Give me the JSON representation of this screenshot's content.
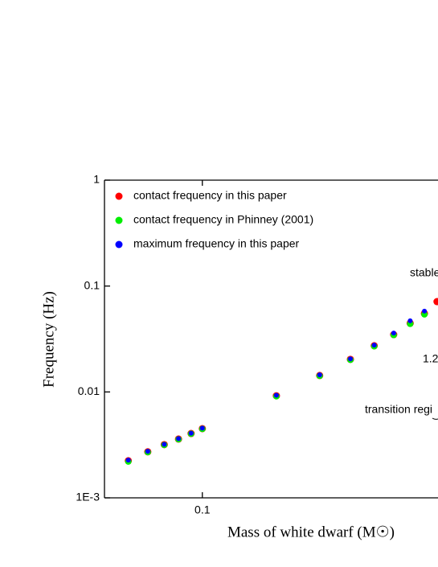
{
  "chart_data": {
    "type": "scatter",
    "xlabel": "Mass of white dwarf (M☉)",
    "ylabel": "Frequency (Hz)",
    "xlog": true,
    "ylog": true,
    "xlim": [
      0.04,
      1.2
    ],
    "ylim": [
      0.001,
      1
    ],
    "xticks": [
      0.1
    ],
    "yticks": [
      {
        "value": 0.001,
        "label": "1E-3"
      },
      0.01,
      0.1,
      1
    ],
    "legend": "upper left",
    "x": [
      0.05,
      0.06,
      0.07,
      0.08,
      0.09,
      0.1,
      0.2,
      0.3,
      0.4,
      0.5,
      0.6,
      0.7,
      0.8,
      0.9
    ],
    "series": [
      {
        "name": "contact frequency in this paper",
        "color": "#ff0000",
        "values": [
          0.00224,
          0.00272,
          0.00318,
          0.00359,
          0.00405,
          0.0045,
          0.0092,
          0.0143,
          0.0203,
          0.0273,
          0.0348,
          0.0445,
          0.055,
          0.0713
        ]
      },
      {
        "name": "contact frequency in Phinney (2001)",
        "color": "#00ee00",
        "values": [
          0.0022,
          0.0027,
          0.00316,
          0.00357,
          0.00403,
          0.00448,
          0.0091,
          0.0142,
          0.0201,
          0.027,
          0.0345,
          0.044,
          0.054,
          null
        ]
      },
      {
        "name": "maximum frequency in this paper",
        "color": "#0000ff",
        "values": [
          0.00227,
          0.00275,
          0.0032,
          0.00362,
          0.00408,
          0.00455,
          0.0093,
          0.0145,
          0.0205,
          0.0277,
          0.036,
          0.047,
          0.058,
          null
        ]
      }
    ],
    "annotations": [
      "stable",
      "1.2",
      "transition regi"
    ]
  }
}
